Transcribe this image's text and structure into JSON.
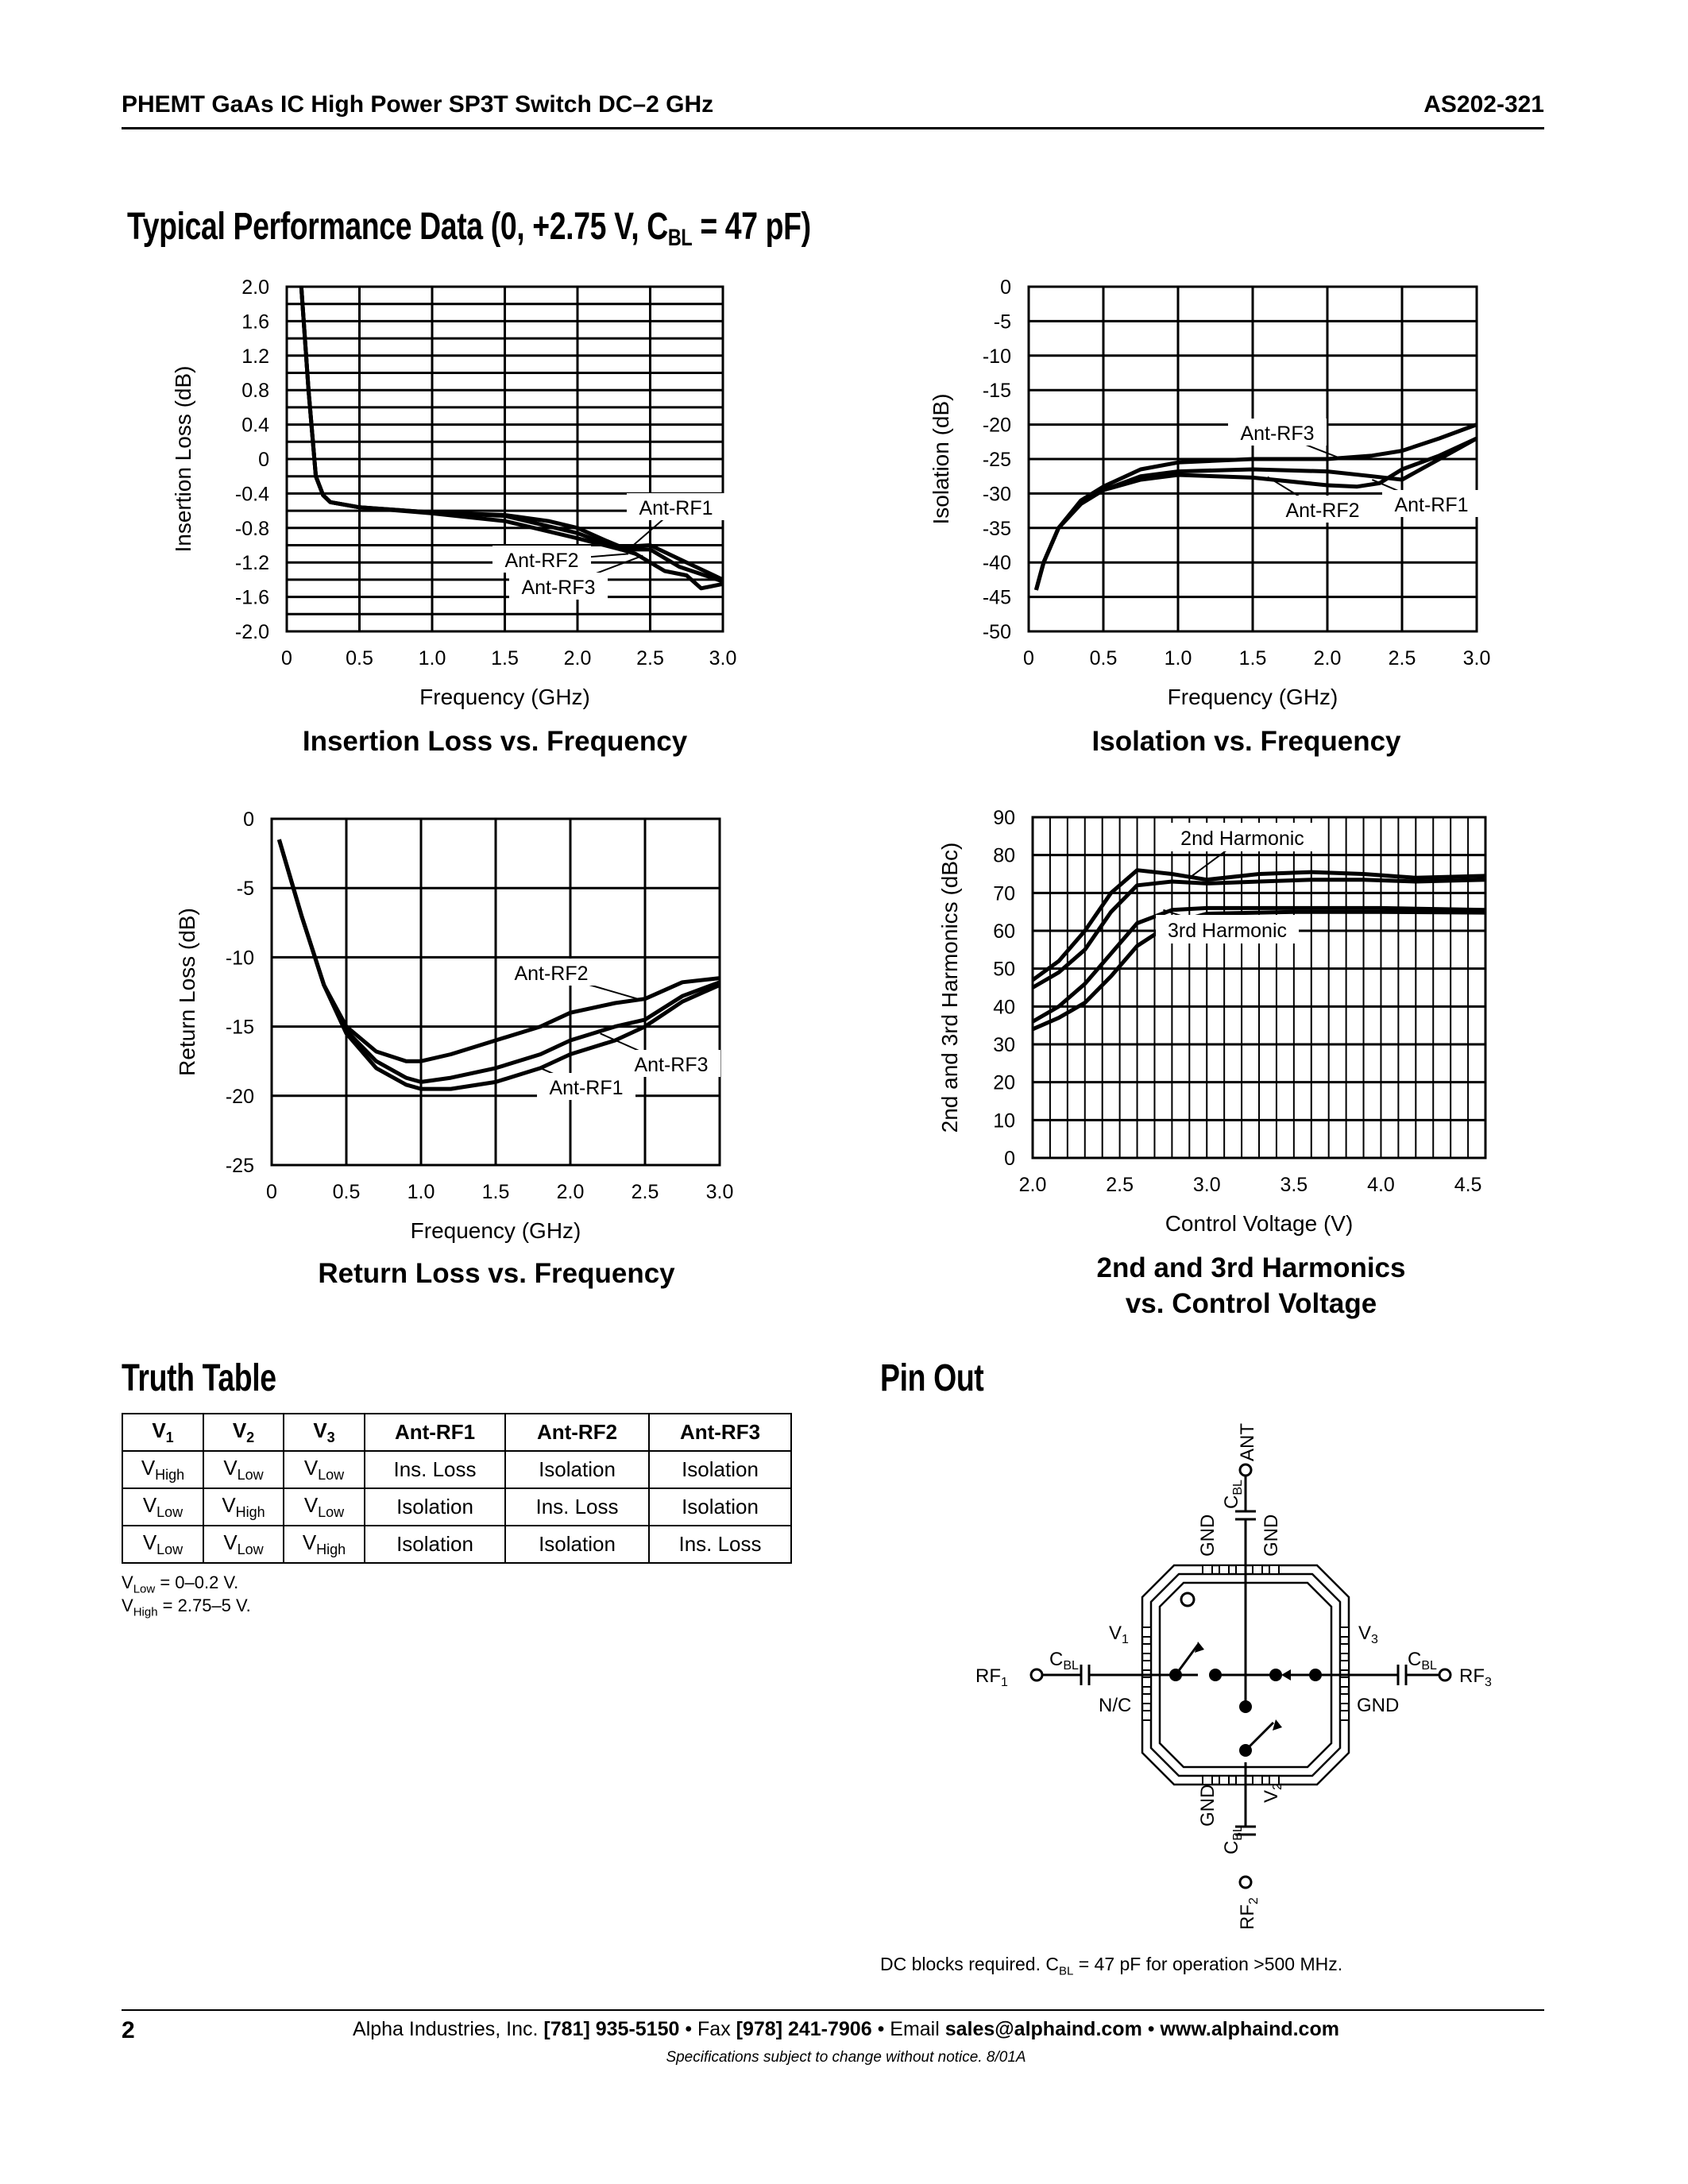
{
  "header": {
    "title": "PHEMT GaAs IC High Power SP3T Switch DC–2 GHz",
    "part_number": "AS202-321"
  },
  "section_title": {
    "main": "Typical Performance Data (0, +2.75 V, C",
    "sub": "BL",
    "tail": " = 47 pF)"
  },
  "chart_data": [
    {
      "type": "line",
      "title": "Insertion Loss vs. Frequency",
      "xlabel": "Frequency (GHz)",
      "ylabel": "Insertion Loss (dB)",
      "xlim": [
        0,
        3.0
      ],
      "ylim": [
        -2.0,
        2.0
      ],
      "grid": true,
      "x_ticks": [
        "0",
        "0.5",
        "1.0",
        "1.5",
        "2.0",
        "2.5",
        "3.0"
      ],
      "y_ticks": [
        "2.0",
        "1.6",
        "1.2",
        "0.8",
        "0.4",
        "0",
        "-0.4",
        "-0.8",
        "-1.2",
        "-1.6",
        "-2.0"
      ],
      "series": [
        {
          "name": "Ant-RF1",
          "x": [
            0.1,
            0.15,
            0.2,
            0.25,
            0.3,
            0.5,
            1.0,
            1.5,
            1.8,
            2.0,
            2.2,
            2.3,
            2.5,
            2.75,
            3.0
          ],
          "y": [
            2.0,
            0.8,
            -0.2,
            -0.42,
            -0.5,
            -0.56,
            -0.62,
            -0.65,
            -0.72,
            -0.8,
            -0.95,
            -1.02,
            -1.0,
            -1.2,
            -1.4
          ]
        },
        {
          "name": "Ant-RF2",
          "x": [
            0.1,
            0.15,
            0.2,
            0.25,
            0.3,
            0.5,
            1.0,
            1.5,
            2.0,
            2.3,
            2.4,
            2.6,
            2.75,
            2.85,
            3.0
          ],
          "y": [
            2.0,
            0.8,
            -0.2,
            -0.42,
            -0.5,
            -0.56,
            -0.63,
            -0.72,
            -0.92,
            -1.05,
            -1.1,
            -1.3,
            -1.35,
            -1.5,
            -1.45
          ]
        },
        {
          "name": "Ant-RF3",
          "x": [
            0.1,
            0.15,
            0.2,
            0.25,
            0.3,
            0.5,
            1.0,
            1.5,
            2.0,
            2.3,
            2.5,
            2.7,
            3.0
          ],
          "y": [
            2.0,
            0.8,
            -0.2,
            -0.42,
            -0.5,
            -0.56,
            -0.62,
            -0.66,
            -0.86,
            -1.05,
            -1.05,
            -1.25,
            -1.42
          ]
        }
      ]
    },
    {
      "type": "line",
      "title": "Isolation vs. Frequency",
      "xlabel": "Frequency (GHz)",
      "ylabel": "Isolation (dB)",
      "xlim": [
        0,
        3.0
      ],
      "ylim": [
        -50,
        0
      ],
      "grid": true,
      "x_ticks": [
        "0",
        "0.5",
        "1.0",
        "1.5",
        "2.0",
        "2.5",
        "3.0"
      ],
      "y_ticks": [
        "0",
        "-5",
        "-10",
        "-15",
        "-20",
        "-25",
        "-30",
        "-35",
        "-40",
        "-45",
        "-50"
      ],
      "series": [
        {
          "name": "Ant-RF1",
          "x": [
            0.05,
            0.1,
            0.2,
            0.35,
            0.5,
            0.75,
            1.0,
            1.5,
            2.0,
            2.3,
            2.5,
            2.75,
            3.0
          ],
          "y": [
            -44,
            -40,
            -35,
            -31.5,
            -29.5,
            -27.5,
            -26.8,
            -26.5,
            -26.8,
            -27.5,
            -28,
            -25,
            -22
          ]
        },
        {
          "name": "Ant-RF2",
          "x": [
            0.05,
            0.1,
            0.2,
            0.35,
            0.5,
            0.75,
            1.0,
            1.5,
            2.0,
            2.2,
            2.35,
            2.5,
            2.75,
            3.0
          ],
          "y": [
            -44,
            -40,
            -35,
            -31.5,
            -29.5,
            -28,
            -27.3,
            -27.7,
            -28.8,
            -29,
            -28.5,
            -26.5,
            -24.5,
            -22
          ]
        },
        {
          "name": "Ant-RF3",
          "x": [
            0.05,
            0.1,
            0.2,
            0.35,
            0.5,
            0.75,
            1.0,
            1.5,
            2.0,
            2.3,
            2.5,
            2.75,
            3.0
          ],
          "y": [
            -44,
            -40,
            -35,
            -31,
            -29,
            -26.5,
            -25.5,
            -25,
            -25,
            -24.5,
            -23.8,
            -22,
            -20
          ]
        }
      ]
    },
    {
      "type": "line",
      "title": "Return Loss vs. Frequency",
      "xlabel": "Frequency (GHz)",
      "ylabel": "Return Loss (dB)",
      "xlim": [
        0,
        3.0
      ],
      "ylim": [
        -25,
        0
      ],
      "grid": true,
      "x_ticks": [
        "0",
        "0.5",
        "1.0",
        "1.5",
        "2.0",
        "2.5",
        "3.0"
      ],
      "y_ticks": [
        "0",
        "-5",
        "-10",
        "-15",
        "-20",
        "-25"
      ],
      "series": [
        {
          "name": "Ant-RF1",
          "x": [
            0.05,
            0.2,
            0.35,
            0.5,
            0.7,
            0.9,
            1.0,
            1.2,
            1.5,
            1.8,
            2.0,
            2.3,
            2.5,
            2.75,
            3.0
          ],
          "y": [
            -1.5,
            -7,
            -12,
            -15.5,
            -18,
            -19.2,
            -19.5,
            -19.5,
            -19,
            -18,
            -17,
            -16,
            -15,
            -13.2,
            -12
          ]
        },
        {
          "name": "Ant-RF2",
          "x": [
            0.05,
            0.2,
            0.35,
            0.5,
            0.7,
            0.9,
            1.0,
            1.2,
            1.5,
            1.8,
            2.0,
            2.3,
            2.5,
            2.75,
            3.0
          ],
          "y": [
            -1.5,
            -7,
            -12,
            -15,
            -16.8,
            -17.5,
            -17.5,
            -17,
            -16,
            -15,
            -14,
            -13.3,
            -13,
            -11.8,
            -11.5
          ]
        },
        {
          "name": "Ant-RF3",
          "x": [
            0.05,
            0.2,
            0.35,
            0.5,
            0.7,
            0.9,
            1.0,
            1.2,
            1.5,
            1.8,
            2.0,
            2.3,
            2.5,
            2.75,
            3.0
          ],
          "y": [
            -1.5,
            -7,
            -12,
            -15.3,
            -17.5,
            -18.7,
            -19,
            -18.7,
            -18,
            -17,
            -16,
            -15,
            -14.5,
            -12.8,
            -11.8
          ]
        }
      ]
    },
    {
      "type": "line",
      "title": "2nd and 3rd Harmonics",
      "title_line2": "vs. Control Voltage",
      "xlabel": "Control Voltage (V)",
      "ylabel": "2nd and 3rd Harmonics (dBc)",
      "xlim": [
        2.0,
        4.6
      ],
      "ylim": [
        0,
        90
      ],
      "grid": true,
      "x_ticks": [
        "2.0",
        "2.5",
        "3.0",
        "3.5",
        "4.0",
        "4.5"
      ],
      "y_ticks": [
        "90",
        "80",
        "70",
        "60",
        "50",
        "40",
        "30",
        "20",
        "10",
        "0"
      ],
      "series": [
        {
          "name": "2nd Harmonic",
          "x": [
            2.0,
            2.15,
            2.3,
            2.45,
            2.6,
            2.8,
            3.0,
            3.3,
            3.6,
            3.9,
            4.2,
            4.6
          ],
          "y": [
            47,
            52,
            60,
            70,
            76,
            75,
            73.5,
            75,
            75.5,
            75,
            74,
            74.5
          ]
        },
        {
          "name": "2nd Harmonic",
          "x": [
            2.0,
            2.15,
            2.3,
            2.45,
            2.6,
            2.8,
            3.0,
            3.3,
            3.6,
            3.9,
            4.2,
            4.6
          ],
          "y": [
            45,
            49,
            55,
            65,
            72,
            73,
            72.5,
            73,
            73.5,
            73.5,
            73,
            73.5
          ]
        },
        {
          "name": "3rd Harmonic",
          "x": [
            2.0,
            2.15,
            2.3,
            2.45,
            2.6,
            2.8,
            3.0,
            3.5,
            4.0,
            4.6
          ],
          "y": [
            36,
            40,
            46,
            54,
            62,
            65.5,
            66,
            66,
            66,
            65.5
          ]
        },
        {
          "name": "3rd Harmonic",
          "x": [
            2.0,
            2.15,
            2.3,
            2.45,
            2.6,
            2.8,
            3.0,
            3.5,
            4.0,
            4.6
          ],
          "y": [
            34,
            37,
            41,
            48,
            56,
            62,
            64.5,
            65,
            65,
            64.8
          ]
        }
      ]
    }
  ],
  "truth_table": {
    "title": "Truth Table",
    "headers": [
      {
        "m": "V",
        "s": "1"
      },
      {
        "m": "V",
        "s": "2"
      },
      {
        "m": "V",
        "s": "3"
      },
      {
        "m": "Ant-RF1",
        "s": ""
      },
      {
        "m": "Ant-RF2",
        "s": ""
      },
      {
        "m": "Ant-RF3",
        "s": ""
      }
    ],
    "rows": [
      [
        {
          "m": "V",
          "s": "High"
        },
        {
          "m": "V",
          "s": "Low"
        },
        {
          "m": "V",
          "s": "Low"
        },
        {
          "m": "Ins. Loss",
          "s": ""
        },
        {
          "m": "Isolation",
          "s": ""
        },
        {
          "m": "Isolation",
          "s": ""
        }
      ],
      [
        {
          "m": "V",
          "s": "Low"
        },
        {
          "m": "V",
          "s": "High"
        },
        {
          "m": "V",
          "s": "Low"
        },
        {
          "m": "Isolation",
          "s": ""
        },
        {
          "m": "Ins. Loss",
          "s": ""
        },
        {
          "m": "Isolation",
          "s": ""
        }
      ],
      [
        {
          "m": "V",
          "s": "Low"
        },
        {
          "m": "V",
          "s": "Low"
        },
        {
          "m": "V",
          "s": "High"
        },
        {
          "m": "Isolation",
          "s": ""
        },
        {
          "m": "Isolation",
          "s": ""
        },
        {
          "m": "Ins. Loss",
          "s": ""
        }
      ]
    ],
    "notes": [
      {
        "m": "V",
        "s": "Low",
        "t": " = 0–0.2 V."
      },
      {
        "m": "V",
        "s": "High",
        "t": " = 2.75–5 V."
      }
    ]
  },
  "pin_out": {
    "title": "Pin Out",
    "ant": "ANT",
    "gnd": "GND",
    "nc": "N/C",
    "c": "C",
    "bl": "BL",
    "rf": "RF",
    "v": "V",
    "n1": "1",
    "n2": "2",
    "n3": "3",
    "caption_a": "DC blocks required. C",
    "caption_sub": "BL",
    "caption_b": " = 47 pF for operation >500 MHz."
  },
  "footer": {
    "page": "2",
    "company": "Alpha Industries, Inc. ",
    "phone": "[781] 935-5150",
    "fax_label": " • Fax ",
    "fax": "[978] 241-7906",
    "email_label": " • Email ",
    "email": "sales@alphaind.com",
    "sep": " • ",
    "web": "www.alphaind.com",
    "disclaimer": "Specifications subject to change without notice.  8/01A"
  }
}
